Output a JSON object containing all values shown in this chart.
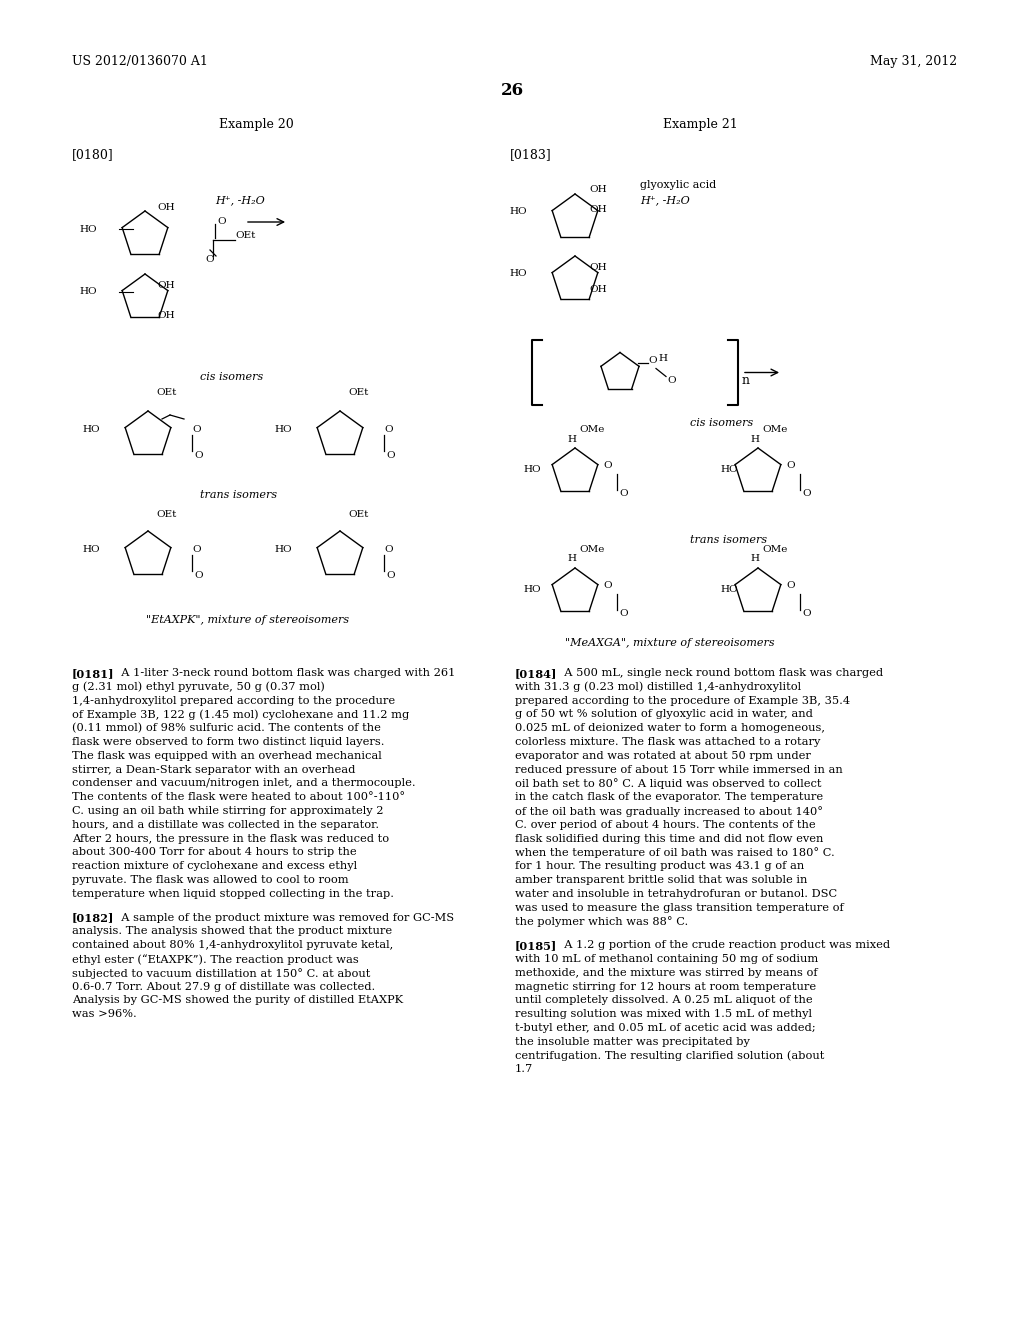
{
  "background_color": "#ffffff",
  "page_number": "26",
  "header_left": "US 2012/0136070 A1",
  "header_right": "May 31, 2012",
  "example20_title": "Example 20",
  "example21_title": "Example 21",
  "label0180": "[0180]",
  "label0183": "[0183]",
  "label0181": "[0181]",
  "label0182": "[0182]",
  "label0184": "[0184]",
  "label0185": "[0185]",
  "cis_label_left": "cis isomers",
  "trans_label_left": "trans isomers",
  "cis_label_right": "cis isomers",
  "trans_label_right": "trans isomers",
  "etaxpk_label": "\"EtAXPK\", mixture of stereoisomers",
  "meaxga_label": "\"MeAXGA\", mixture of stereoisomers",
  "para0181": "A 1-liter 3-neck round bottom flask was charged with 261 g (2.31 mol) ethyl pyruvate, 50 g (0.37 mol) 1,4-anhydroxylitol prepared according to the procedure of Example 3B, 122 g (1.45 mol) cyclohexane and 11.2 mg (0.11 mmol) of 98% sulfuric acid. The contents of the flask were observed to form two distinct liquid layers. The flask was equipped with an overhead mechanical stirrer, a Dean-Stark separator with an overhead condenser and vacuum/nitrogen inlet, and a thermocouple. The contents of the flask were heated to about 100°-110° C. using an oil bath while stirring for approximately 2 hours, and a distillate was collected in the separator. After 2 hours, the pressure in the flask was reduced to about 300-400 Torr for about 4 hours to strip the reaction mixture of cyclohexane and excess ethyl pyruvate. The flask was allowed to cool to room temperature when liquid stopped collecting in the trap.",
  "para0182": "A sample of the product mixture was removed for GC-MS analysis. The analysis showed that the product mixture contained about 80% 1,4-anhydroxylitol pyruvate ketal, ethyl ester (“EtAXPK”). The reaction product was subjected to vacuum distillation at 150° C. at about 0.6-0.7 Torr. About 27.9 g of distillate was collected. Analysis by GC-MS showed the purity of distilled EtAXPK was >96%.",
  "para0184": "A 500 mL, single neck round bottom flask was charged with 31.3 g (0.23 mol) distilled 1,4-anhydroxylitol prepared according to the procedure of Example 3B, 35.4 g of 50 wt % solution of glyoxylic acid in water, and 0.025 mL of deionized water to form a homogeneous, colorless mixture. The flask was attached to a rotary evaporator and was rotated at about 50 rpm under reduced pressure of about 15 Torr while immersed in an oil bath set to 80° C. A liquid was observed to collect in the catch flask of the evaporator. The temperature of the oil bath was gradually increased to about 140° C. over period of about 4 hours. The contents of the flask solidified during this time and did not flow even when the temperature of oil bath was raised to 180° C. for 1 hour. The resulting product was 43.1 g of an amber transparent brittle solid that was soluble in water and insoluble in tetrahydrofuran or butanol. DSC was used to measure the glass transition temperature of the polymer which was 88° C.",
  "para0185": "A 1.2 g portion of the crude reaction product was mixed with 10 mL of methanol containing 50 mg of sodium methoxide, and the mixture was stirred by means of magnetic stirring for 12 hours at room temperature until completely dissolved. A 0.25 mL aliquot of the resulting solution was mixed with 1.5 mL of methyl t-butyl ether, and 0.05 mL of acetic acid was added; the insoluble matter was precipitated by centrifugation. The resulting clarified solution (about 1.7"
}
